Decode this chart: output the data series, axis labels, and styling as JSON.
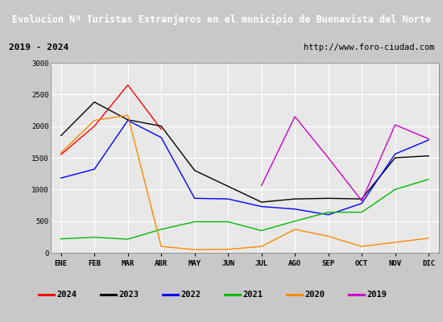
{
  "title": "Evolucion Nº Turistas Extranjeros en el municipio de Buenavista del Norte",
  "subtitle_left": "2019 - 2024",
  "subtitle_right": "http://www.foro-ciudad.com",
  "months": [
    "ENE",
    "FEB",
    "MAR",
    "ABR",
    "MAY",
    "JUN",
    "JUL",
    "AGO",
    "SEP",
    "OCT",
    "NOV",
    "DIC"
  ],
  "year_data": {
    "2024": [
      1550,
      2000,
      2650,
      1950,
      null,
      null,
      null,
      null,
      null,
      null,
      null,
      null
    ],
    "2023": [
      1850,
      2380,
      2100,
      2000,
      1300,
      1050,
      800,
      850,
      860,
      850,
      1500,
      1530
    ],
    "2022": [
      1180,
      1320,
      2090,
      1820,
      860,
      850,
      730,
      690,
      600,
      780,
      1560,
      1780
    ],
    "2021": [
      220,
      245,
      215,
      370,
      490,
      490,
      350,
      500,
      640,
      640,
      1000,
      1160
    ],
    "2020": [
      1580,
      2090,
      2170,
      100,
      50,
      55,
      100,
      370,
      260,
      100,
      165,
      230
    ],
    "2019": [
      null,
      null,
      null,
      null,
      null,
      null,
      1060,
      2150,
      1500,
      820,
      2020,
      1800
    ]
  },
  "colors": {
    "2024": "#ff0000",
    "2023": "#000000",
    "2022": "#0000ff",
    "2021": "#00bb00",
    "2020": "#ff8800",
    "2019": "#cc00cc"
  },
  "year_order": [
    "2024",
    "2023",
    "2022",
    "2021",
    "2020",
    "2019"
  ],
  "ylim": [
    0,
    3000
  ],
  "yticks": [
    0,
    500,
    1000,
    1500,
    2000,
    2500,
    3000
  ],
  "title_bg": "#2060b0",
  "title_fg": "#ffffff",
  "subtitle_bg": "#e0e0e0",
  "plot_bg": "#e8e8e8",
  "grid_color": "#ffffff",
  "border_color": "#4488cc",
  "fig_bg": "#c8c8c8"
}
